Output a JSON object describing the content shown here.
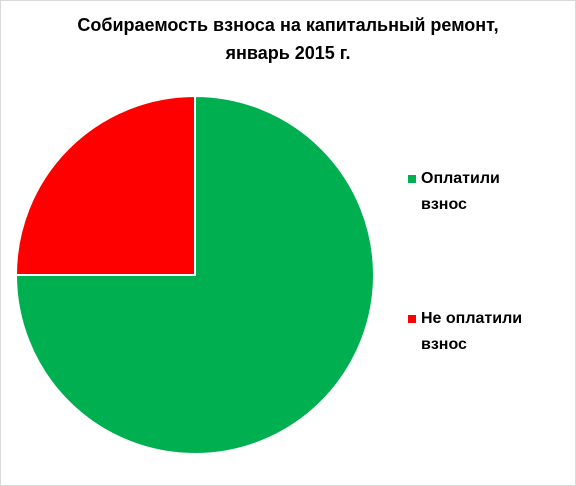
{
  "chart_data": {
    "type": "pie",
    "title": [
      "Собираемость взноса на капитальный ремонт,",
      "январь 2015 г."
    ],
    "categories": [
      "Оплатили взнос",
      "Не оплатили взнос"
    ],
    "values": [
      75,
      25
    ],
    "colors": [
      "#00b050",
      "#ff0000"
    ],
    "legend": "right"
  }
}
